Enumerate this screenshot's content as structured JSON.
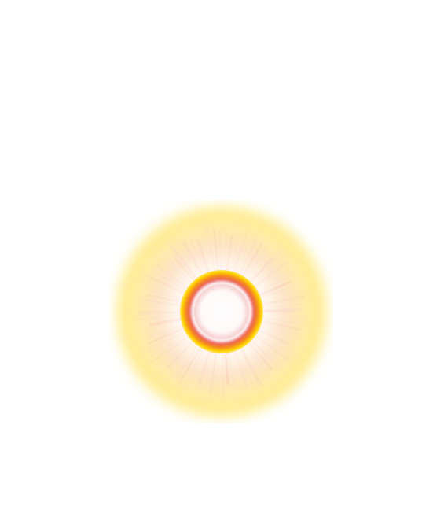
{
  "image": {
    "subject": "sun-flare",
    "colors": {
      "background": "#ffffff",
      "outer_glow": "#ffe868",
      "halo": "#fff6c8",
      "ray_tint": "#f29ca0",
      "ring_outer": "#ffd400",
      "ring_inner": "#f58a1f",
      "ring_edge": "#ef6a4f",
      "core": "#fdfdfd"
    }
  }
}
